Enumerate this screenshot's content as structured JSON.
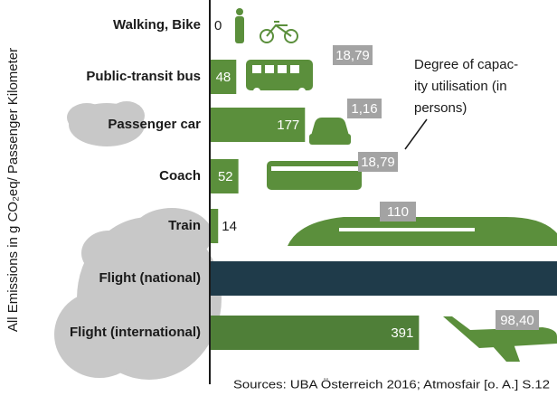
{
  "chart_data": {
    "type": "bar",
    "orientation": "horizontal",
    "y_axis_label": "All Emissions in g CO₂eq/ Passenger Kilometer",
    "categories": [
      "Walking, Bike",
      "Public-transit bus",
      "Passenger car",
      "Coach",
      "Train",
      "Flight (national)",
      "Flight (international)"
    ],
    "values": [
      0,
      48,
      177,
      52,
      14,
      650,
      391
    ],
    "colors": [
      "#5b8f3c",
      "#5b8f3c",
      "#5b8f3c",
      "#5b8f3c",
      "#5b8f3c",
      "#1f3b4a",
      "#4f7f38"
    ],
    "xlim": [
      0,
      650
    ],
    "capacity": {
      "values": [
        18.79,
        1.16,
        18.79,
        110,
        98.4
      ],
      "value_labels": [
        "18,79",
        "1,16",
        "18,79",
        "110",
        "98,40"
      ]
    },
    "annotation": [
      "Degree of capac-",
      "ity utilisation (in",
      "persons)"
    ],
    "source": "Sources: UBA Österreich 2016; Atmosfair [o. A.] S.12"
  }
}
